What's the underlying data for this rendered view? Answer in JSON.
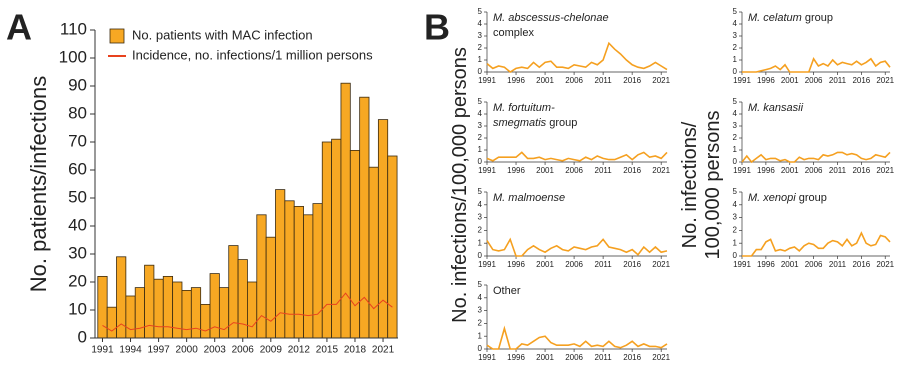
{
  "chart_data": [
    {
      "type": "bar",
      "panel": "A",
      "ylabel": "No. patients/infections",
      "x": [
        1991,
        1992,
        1993,
        1994,
        1995,
        1996,
        1997,
        1998,
        1999,
        2000,
        2001,
        2002,
        2003,
        2004,
        2005,
        2006,
        2007,
        2008,
        2009,
        2010,
        2011,
        2012,
        2013,
        2014,
        2015,
        2016,
        2017,
        2018,
        2019,
        2020,
        2021,
        2022
      ],
      "series": [
        {
          "name": "No. patients with MAC infection",
          "type": "bar",
          "color": "#f7a823",
          "values": [
            22,
            11,
            29,
            15,
            18,
            26,
            21,
            22,
            20,
            17,
            18,
            12,
            23,
            18,
            33,
            28,
            20,
            44,
            36,
            53,
            49,
            47,
            44,
            48,
            70,
            71,
            91,
            67,
            86,
            61,
            78,
            65
          ]
        },
        {
          "name": "Incidence, no. infections/1 million persons",
          "type": "line",
          "color": "#e8421e",
          "values": [
            4.5,
            2.5,
            5,
            3,
            3.5,
            4.5,
            4,
            4,
            3.5,
            3,
            3.5,
            2.5,
            4,
            3,
            5.5,
            5,
            4,
            8,
            6,
            9,
            8.5,
            8.5,
            8,
            8.5,
            12,
            12,
            16,
            11.5,
            14.5,
            10.5,
            13.5,
            11
          ]
        }
      ],
      "xlim": [
        1990.2,
        2022.6
      ],
      "xticks": [
        1991,
        1994,
        1997,
        2000,
        2003,
        2006,
        2009,
        2012,
        2015,
        2018,
        2021
      ],
      "ylim": [
        0,
        110
      ],
      "yticks": [
        0,
        10,
        20,
        30,
        40,
        50,
        60,
        70,
        80,
        90,
        100,
        110
      ]
    },
    {
      "type": "line",
      "panel": "B",
      "ylabel": [
        "No. infections/100,000 persons"
      ],
      "color": "#f5a020",
      "label": [
        [
          {
            "text": "M. abscessus-chelonae",
            "italic": true
          }
        ],
        [
          {
            "text": "complex",
            "italic": false
          }
        ]
      ],
      "x": [
        1991,
        1992,
        1993,
        1994,
        1995,
        1996,
        1997,
        1998,
        1999,
        2000,
        2001,
        2002,
        2003,
        2004,
        2005,
        2006,
        2007,
        2008,
        2009,
        2010,
        2011,
        2012,
        2013,
        2014,
        2015,
        2016,
        2017,
        2018,
        2019,
        2020,
        2021,
        2022
      ],
      "values": [
        0.7,
        0.3,
        0.5,
        0.4,
        0,
        0.3,
        0.4,
        0.3,
        0.8,
        0.4,
        0.8,
        0.9,
        0.4,
        0.4,
        0.3,
        0.6,
        0.5,
        0.4,
        0.8,
        0.6,
        1,
        2.4,
        1.9,
        1.5,
        1,
        0.6,
        0.4,
        0.3,
        0.5,
        0.8,
        0.5,
        0.2
      ],
      "xlim": [
        1991,
        2022
      ],
      "xticks": [
        1991,
        1996,
        2001,
        2006,
        2011,
        2016,
        2021
      ],
      "ylim": [
        0,
        5
      ],
      "yticks": [
        0,
        1,
        2,
        3,
        4,
        5
      ]
    },
    {
      "type": "line",
      "color": "#f5a020",
      "label": [
        [
          {
            "text": "M. fortuitum-",
            "italic": true
          }
        ],
        [
          {
            "text": "smegmatis",
            "italic": true
          },
          {
            "text": " group",
            "italic": false
          }
        ]
      ],
      "x": [
        1991,
        1992,
        1993,
        1994,
        1995,
        1996,
        1997,
        1998,
        1999,
        2000,
        2001,
        2002,
        2003,
        2004,
        2005,
        2006,
        2007,
        2008,
        2009,
        2010,
        2011,
        2012,
        2013,
        2014,
        2015,
        2016,
        2017,
        2018,
        2019,
        2020,
        2021,
        2022
      ],
      "values": [
        0.3,
        0.1,
        0.4,
        0.4,
        0.4,
        0.4,
        0.8,
        0.3,
        0.3,
        0.4,
        0.2,
        0.3,
        0.2,
        0.1,
        0.3,
        0.2,
        0.1,
        0.4,
        0.2,
        0.5,
        0.3,
        0.2,
        0.2,
        0.4,
        0.6,
        0.2,
        0.6,
        0.8,
        0.4,
        0.5,
        0.3,
        0.8
      ],
      "xlim": [
        1991,
        2022
      ],
      "xticks": [
        1991,
        1996,
        2001,
        2006,
        2011,
        2016,
        2021
      ],
      "ylim": [
        0,
        5
      ],
      "yticks": [
        0,
        1,
        2,
        3,
        4,
        5
      ]
    },
    {
      "type": "line",
      "color": "#f5a020",
      "label": [
        [
          {
            "text": "M. malmoense",
            "italic": true
          }
        ]
      ],
      "x": [
        1991,
        1992,
        1993,
        1994,
        1995,
        1996,
        1997,
        1998,
        1999,
        2000,
        2001,
        2002,
        2003,
        2004,
        2005,
        2006,
        2007,
        2008,
        2009,
        2010,
        2011,
        2012,
        2013,
        2014,
        2015,
        2016,
        2017,
        2018,
        2019,
        2020,
        2021,
        2022
      ],
      "values": [
        1.2,
        0.5,
        0.4,
        0.5,
        1.3,
        0,
        0,
        0.5,
        0.8,
        0.5,
        0.3,
        0.6,
        0.8,
        0.5,
        0.4,
        0.7,
        0.6,
        0.5,
        0.7,
        0.8,
        1.3,
        0.7,
        0.6,
        0.5,
        0.3,
        0.5,
        0.1,
        0.7,
        0.3,
        0.7,
        0.3,
        0.4
      ],
      "xlim": [
        1991,
        2022
      ],
      "xticks": [
        1991,
        1996,
        2001,
        2006,
        2011,
        2016,
        2021
      ],
      "ylim": [
        0,
        5
      ],
      "yticks": [
        0,
        1,
        2,
        3,
        4,
        5
      ]
    },
    {
      "type": "line",
      "color": "#f5a020",
      "label": [
        [
          {
            "text": "Other",
            "italic": false
          }
        ]
      ],
      "x": [
        1991,
        1992,
        1993,
        1994,
        1995,
        1996,
        1997,
        1998,
        1999,
        2000,
        2001,
        2002,
        2003,
        2004,
        2005,
        2006,
        2007,
        2008,
        2009,
        2010,
        2011,
        2012,
        2013,
        2014,
        2015,
        2016,
        2017,
        2018,
        2019,
        2020,
        2021,
        2022
      ],
      "values": [
        0.3,
        0,
        0,
        1.6,
        0,
        0,
        0.4,
        0.3,
        0.6,
        0.9,
        1,
        0.5,
        0.3,
        0.3,
        0.3,
        0.4,
        0.2,
        0.6,
        0.2,
        0.3,
        0.2,
        0.6,
        0.2,
        0.1,
        0.3,
        0.6,
        0.2,
        0.4,
        0.2,
        0.2,
        0.1,
        0.4
      ],
      "xlim": [
        1991,
        2022
      ],
      "xticks": [
        1991,
        1996,
        2001,
        2006,
        2011,
        2016,
        2021
      ],
      "ylim": [
        0,
        5
      ],
      "yticks": [
        0,
        1,
        2,
        3,
        4,
        5
      ]
    },
    {
      "type": "line",
      "ylabel": [
        "No. infections/",
        "100,000 persons"
      ],
      "color": "#f5a020",
      "label": [
        [
          {
            "text": "M. celatum",
            "italic": true
          },
          {
            "text": " group",
            "italic": false
          }
        ]
      ],
      "x": [
        1991,
        1992,
        1993,
        1994,
        1995,
        1996,
        1997,
        1998,
        1999,
        2000,
        2001,
        2002,
        2003,
        2004,
        2005,
        2006,
        2007,
        2008,
        2009,
        2010,
        2011,
        2012,
        2013,
        2014,
        2015,
        2016,
        2017,
        2018,
        2019,
        2020,
        2021,
        2022
      ],
      "values": [
        0,
        0,
        0,
        0,
        0.1,
        0.2,
        0.3,
        0.5,
        0.2,
        0.6,
        0,
        0,
        0,
        0,
        0,
        1.1,
        0.5,
        0.7,
        0.5,
        1,
        0.6,
        0.8,
        0.7,
        0.6,
        0.9,
        0.6,
        0.8,
        1.1,
        0.5,
        0.8,
        0.9,
        0.4
      ],
      "xlim": [
        1991,
        2022
      ],
      "xticks": [
        1991,
        1996,
        2001,
        2006,
        2011,
        2016,
        2021
      ],
      "ylim": [
        0,
        5
      ],
      "yticks": [
        0,
        1,
        2,
        3,
        4,
        5
      ]
    },
    {
      "type": "line",
      "color": "#f5a020",
      "label": [
        [
          {
            "text": "M. kansasii",
            "italic": true
          }
        ]
      ],
      "x": [
        1991,
        1992,
        1993,
        1994,
        1995,
        1996,
        1997,
        1998,
        1999,
        2000,
        2001,
        2002,
        2003,
        2004,
        2005,
        2006,
        2007,
        2008,
        2009,
        2010,
        2011,
        2012,
        2013,
        2014,
        2015,
        2016,
        2017,
        2018,
        2019,
        2020,
        2021,
        2022
      ],
      "values": [
        0,
        0.5,
        0,
        0.3,
        0.6,
        0.2,
        0.3,
        0.3,
        0.1,
        0.2,
        0,
        0,
        0.4,
        0.2,
        0.3,
        0.3,
        0.2,
        0.6,
        0.5,
        0.6,
        0.8,
        0.8,
        0.6,
        0.7,
        0.6,
        0.3,
        0.2,
        0.3,
        0.6,
        0.5,
        0.4,
        0.8
      ],
      "xlim": [
        1991,
        2022
      ],
      "xticks": [
        1991,
        1996,
        2001,
        2006,
        2011,
        2016,
        2021
      ],
      "ylim": [
        0,
        5
      ],
      "yticks": [
        0,
        1,
        2,
        3,
        4,
        5
      ]
    },
    {
      "type": "line",
      "color": "#f5a020",
      "label": [
        [
          {
            "text": "M. xenopi",
            "italic": true
          },
          {
            "text": " group",
            "italic": false
          }
        ]
      ],
      "x": [
        1991,
        1992,
        1993,
        1994,
        1995,
        1996,
        1997,
        1998,
        1999,
        2000,
        2001,
        2002,
        2003,
        2004,
        2005,
        2006,
        2007,
        2008,
        2009,
        2010,
        2011,
        2012,
        2013,
        2014,
        2015,
        2016,
        2017,
        2018,
        2019,
        2020,
        2021,
        2022
      ],
      "values": [
        0,
        0,
        0,
        0.5,
        0.5,
        1.1,
        1.3,
        0.4,
        0.5,
        0.4,
        0.6,
        0.7,
        0.4,
        0.8,
        1,
        0.9,
        0.6,
        0.6,
        1,
        1.2,
        1.1,
        0.8,
        1.3,
        0.8,
        1,
        1.8,
        1,
        0.8,
        0.9,
        1.6,
        1.5,
        1.1
      ],
      "xlim": [
        1991,
        2022
      ],
      "xticks": [
        1991,
        1996,
        2001,
        2006,
        2011,
        2016,
        2021
      ],
      "ylim": [
        0,
        5
      ],
      "yticks": [
        0,
        1,
        2,
        3,
        4,
        5
      ]
    }
  ]
}
